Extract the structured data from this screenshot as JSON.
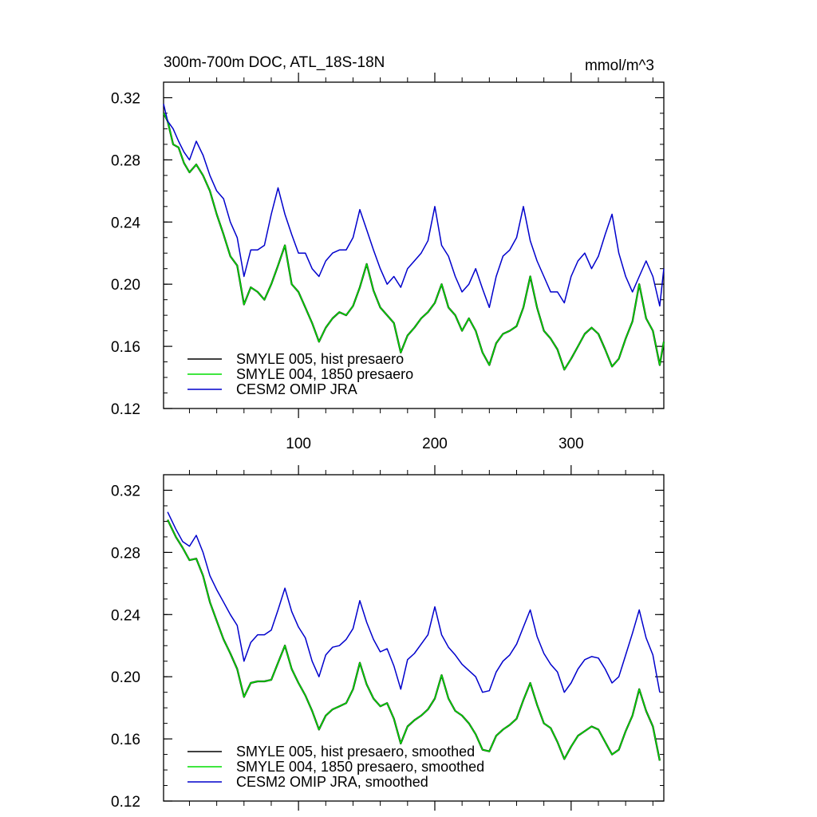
{
  "chart_data": [
    {
      "type": "line",
      "title": "300m-700m DOC, ATL_18S-18N",
      "units": "mmol/m^3",
      "xlabel": "",
      "ylabel": "",
      "xlim": [
        1,
        368
      ],
      "ylim": [
        0.12,
        0.33
      ],
      "xticks": [
        100,
        200,
        300
      ],
      "xtick_labels": [
        "100",
        "200",
        "300"
      ],
      "yticks": [
        0.12,
        0.16,
        0.2,
        0.24,
        0.28,
        0.32
      ],
      "ytick_labels": [
        "0.12",
        "0.16",
        "0.20",
        "0.24",
        "0.28",
        "0.32"
      ],
      "legend_position": "bottom-left",
      "series": [
        {
          "name": "SMYLE 005, hist presaero",
          "color": "#000000",
          "x": [
            1,
            4,
            8,
            12,
            16,
            20,
            25,
            30,
            35,
            40,
            45,
            50,
            55,
            60,
            65,
            70,
            75,
            80,
            85,
            90,
            95,
            100,
            105,
            110,
            115,
            120,
            125,
            130,
            135,
            140,
            145,
            150,
            155,
            160,
            165,
            170,
            175,
            180,
            185,
            190,
            195,
            200,
            205,
            210,
            215,
            220,
            225,
            230,
            235,
            240,
            245,
            250,
            255,
            260,
            265,
            270,
            275,
            280,
            285,
            290,
            295,
            300,
            305,
            310,
            315,
            320,
            325,
            330,
            335,
            340,
            345,
            350,
            355,
            360,
            365,
            368
          ],
          "values": [
            0.31,
            0.305,
            0.29,
            0.288,
            0.278,
            0.272,
            0.277,
            0.27,
            0.26,
            0.245,
            0.232,
            0.218,
            0.212,
            0.187,
            0.198,
            0.195,
            0.19,
            0.2,
            0.212,
            0.225,
            0.2,
            0.195,
            0.185,
            0.175,
            0.163,
            0.172,
            0.178,
            0.182,
            0.18,
            0.186,
            0.198,
            0.213,
            0.196,
            0.185,
            0.18,
            0.175,
            0.156,
            0.167,
            0.172,
            0.178,
            0.182,
            0.188,
            0.2,
            0.185,
            0.18,
            0.17,
            0.178,
            0.17,
            0.156,
            0.148,
            0.162,
            0.168,
            0.17,
            0.173,
            0.185,
            0.205,
            0.185,
            0.17,
            0.165,
            0.158,
            0.145,
            0.152,
            0.16,
            0.168,
            0.172,
            0.168,
            0.158,
            0.147,
            0.152,
            0.165,
            0.176,
            0.2,
            0.178,
            0.17,
            0.148,
            0.163
          ]
        },
        {
          "name": "SMYLE 004, 1850 presaero",
          "color": "#00dd00",
          "x": [
            1,
            4,
            8,
            12,
            16,
            20,
            25,
            30,
            35,
            40,
            45,
            50,
            55,
            60,
            65,
            70,
            75,
            80,
            85,
            90,
            95,
            100,
            105,
            110,
            115,
            120,
            125,
            130,
            135,
            140,
            145,
            150,
            155,
            160,
            165,
            170,
            175,
            180,
            185,
            190,
            195,
            200,
            205,
            210,
            215,
            220,
            225,
            230,
            235,
            240,
            245,
            250,
            255,
            260,
            265,
            270,
            275,
            280,
            285,
            290,
            295,
            300,
            305,
            310,
            315,
            320,
            325,
            330,
            335,
            340,
            345,
            350,
            355,
            360,
            365,
            368
          ],
          "values": [
            0.31,
            0.305,
            0.29,
            0.288,
            0.278,
            0.272,
            0.277,
            0.27,
            0.26,
            0.245,
            0.232,
            0.218,
            0.212,
            0.187,
            0.198,
            0.195,
            0.19,
            0.2,
            0.212,
            0.225,
            0.2,
            0.195,
            0.185,
            0.175,
            0.163,
            0.172,
            0.178,
            0.182,
            0.18,
            0.186,
            0.198,
            0.213,
            0.196,
            0.185,
            0.18,
            0.175,
            0.156,
            0.167,
            0.172,
            0.178,
            0.182,
            0.188,
            0.2,
            0.185,
            0.18,
            0.17,
            0.178,
            0.17,
            0.156,
            0.148,
            0.162,
            0.168,
            0.17,
            0.173,
            0.185,
            0.205,
            0.185,
            0.17,
            0.165,
            0.158,
            0.145,
            0.152,
            0.16,
            0.168,
            0.172,
            0.168,
            0.158,
            0.147,
            0.152,
            0.165,
            0.176,
            0.2,
            0.178,
            0.17,
            0.148,
            0.163
          ]
        },
        {
          "name": "CESM2 OMIP JRA",
          "color": "#0000cc",
          "x": [
            1,
            4,
            8,
            12,
            16,
            20,
            25,
            30,
            35,
            40,
            45,
            50,
            55,
            60,
            65,
            70,
            75,
            80,
            85,
            90,
            95,
            100,
            105,
            110,
            115,
            120,
            125,
            130,
            135,
            140,
            145,
            150,
            155,
            160,
            165,
            170,
            175,
            180,
            185,
            190,
            195,
            200,
            205,
            210,
            215,
            220,
            225,
            230,
            235,
            240,
            245,
            250,
            255,
            260,
            265,
            270,
            275,
            280,
            285,
            290,
            295,
            300,
            305,
            310,
            315,
            320,
            325,
            330,
            335,
            340,
            345,
            350,
            355,
            360,
            365,
            368
          ],
          "values": [
            0.316,
            0.305,
            0.3,
            0.292,
            0.285,
            0.28,
            0.292,
            0.283,
            0.27,
            0.26,
            0.255,
            0.24,
            0.23,
            0.205,
            0.222,
            0.222,
            0.225,
            0.245,
            0.262,
            0.245,
            0.232,
            0.22,
            0.22,
            0.21,
            0.205,
            0.215,
            0.22,
            0.222,
            0.222,
            0.23,
            0.248,
            0.235,
            0.222,
            0.21,
            0.2,
            0.205,
            0.198,
            0.21,
            0.215,
            0.22,
            0.228,
            0.25,
            0.225,
            0.218,
            0.205,
            0.195,
            0.2,
            0.21,
            0.197,
            0.185,
            0.205,
            0.218,
            0.222,
            0.23,
            0.25,
            0.228,
            0.215,
            0.205,
            0.195,
            0.195,
            0.188,
            0.205,
            0.215,
            0.22,
            0.21,
            0.218,
            0.232,
            0.245,
            0.22,
            0.205,
            0.195,
            0.205,
            0.215,
            0.205,
            0.186,
            0.21
          ]
        }
      ]
    },
    {
      "type": "line",
      "title": "",
      "xlabel": "",
      "ylabel": "",
      "xlim": [
        1,
        368
      ],
      "ylim": [
        0.12,
        0.33
      ],
      "xticks": [
        100,
        200,
        300
      ],
      "yticks": [
        0.12,
        0.16,
        0.2,
        0.24,
        0.28,
        0.32
      ],
      "ytick_labels": [
        "0.12",
        "0.16",
        "0.20",
        "0.24",
        "0.28",
        "0.32"
      ],
      "legend_position": "bottom-left",
      "series": [
        {
          "name": "SMYLE 005, hist presaero, smoothed",
          "color": "#000000",
          "x": [
            4,
            10,
            15,
            20,
            25,
            30,
            35,
            40,
            45,
            50,
            55,
            60,
            65,
            70,
            75,
            80,
            85,
            90,
            95,
            100,
            105,
            110,
            115,
            120,
            125,
            130,
            135,
            140,
            145,
            150,
            155,
            160,
            165,
            170,
            175,
            180,
            185,
            190,
            195,
            200,
            205,
            210,
            215,
            220,
            225,
            230,
            235,
            240,
            245,
            250,
            255,
            260,
            265,
            270,
            275,
            280,
            285,
            290,
            295,
            300,
            305,
            310,
            315,
            320,
            325,
            330,
            335,
            340,
            345,
            350,
            355,
            360,
            365
          ],
          "values": [
            0.301,
            0.29,
            0.283,
            0.275,
            0.276,
            0.265,
            0.248,
            0.236,
            0.224,
            0.215,
            0.205,
            0.187,
            0.196,
            0.197,
            0.197,
            0.198,
            0.209,
            0.22,
            0.205,
            0.196,
            0.188,
            0.178,
            0.166,
            0.175,
            0.179,
            0.181,
            0.183,
            0.192,
            0.209,
            0.195,
            0.186,
            0.181,
            0.183,
            0.173,
            0.157,
            0.168,
            0.172,
            0.175,
            0.179,
            0.186,
            0.201,
            0.186,
            0.178,
            0.175,
            0.17,
            0.163,
            0.153,
            0.152,
            0.162,
            0.166,
            0.169,
            0.173,
            0.185,
            0.196,
            0.182,
            0.17,
            0.167,
            0.158,
            0.147,
            0.155,
            0.162,
            0.165,
            0.168,
            0.166,
            0.158,
            0.15,
            0.153,
            0.165,
            0.175,
            0.192,
            0.178,
            0.168,
            0.146
          ]
        },
        {
          "name": "SMYLE 004, 1850 presaero, smoothed",
          "color": "#00dd00",
          "x": [
            4,
            10,
            15,
            20,
            25,
            30,
            35,
            40,
            45,
            50,
            55,
            60,
            65,
            70,
            75,
            80,
            85,
            90,
            95,
            100,
            105,
            110,
            115,
            120,
            125,
            130,
            135,
            140,
            145,
            150,
            155,
            160,
            165,
            170,
            175,
            180,
            185,
            190,
            195,
            200,
            205,
            210,
            215,
            220,
            225,
            230,
            235,
            240,
            245,
            250,
            255,
            260,
            265,
            270,
            275,
            280,
            285,
            290,
            295,
            300,
            305,
            310,
            315,
            320,
            325,
            330,
            335,
            340,
            345,
            350,
            355,
            360,
            365
          ],
          "values": [
            0.301,
            0.29,
            0.283,
            0.275,
            0.276,
            0.265,
            0.248,
            0.236,
            0.224,
            0.215,
            0.205,
            0.187,
            0.196,
            0.197,
            0.197,
            0.198,
            0.209,
            0.22,
            0.205,
            0.196,
            0.188,
            0.178,
            0.166,
            0.175,
            0.179,
            0.181,
            0.183,
            0.192,
            0.209,
            0.195,
            0.186,
            0.181,
            0.183,
            0.173,
            0.157,
            0.168,
            0.172,
            0.175,
            0.179,
            0.186,
            0.201,
            0.186,
            0.178,
            0.175,
            0.17,
            0.163,
            0.153,
            0.152,
            0.162,
            0.166,
            0.169,
            0.173,
            0.185,
            0.196,
            0.182,
            0.17,
            0.167,
            0.158,
            0.147,
            0.155,
            0.162,
            0.165,
            0.168,
            0.166,
            0.158,
            0.15,
            0.153,
            0.165,
            0.175,
            0.192,
            0.178,
            0.168,
            0.146
          ]
        },
        {
          "name": "CESM2 OMIP JRA, smoothed",
          "color": "#0000cc",
          "x": [
            4,
            10,
            15,
            20,
            25,
            30,
            35,
            40,
            45,
            50,
            55,
            60,
            65,
            70,
            75,
            80,
            85,
            90,
            95,
            100,
            105,
            110,
            115,
            120,
            125,
            130,
            135,
            140,
            145,
            150,
            155,
            160,
            165,
            170,
            175,
            180,
            185,
            190,
            195,
            200,
            205,
            210,
            215,
            220,
            225,
            230,
            235,
            240,
            245,
            250,
            255,
            260,
            265,
            270,
            275,
            280,
            285,
            290,
            295,
            300,
            305,
            310,
            315,
            320,
            325,
            330,
            335,
            340,
            345,
            350,
            355,
            360,
            365
          ],
          "values": [
            0.306,
            0.295,
            0.287,
            0.284,
            0.291,
            0.28,
            0.265,
            0.256,
            0.248,
            0.24,
            0.233,
            0.21,
            0.222,
            0.227,
            0.227,
            0.23,
            0.243,
            0.257,
            0.242,
            0.232,
            0.225,
            0.21,
            0.2,
            0.214,
            0.219,
            0.22,
            0.224,
            0.231,
            0.249,
            0.235,
            0.224,
            0.216,
            0.218,
            0.207,
            0.192,
            0.211,
            0.215,
            0.221,
            0.227,
            0.245,
            0.227,
            0.219,
            0.214,
            0.208,
            0.204,
            0.2,
            0.19,
            0.191,
            0.203,
            0.21,
            0.214,
            0.221,
            0.232,
            0.243,
            0.226,
            0.215,
            0.208,
            0.203,
            0.19,
            0.196,
            0.205,
            0.211,
            0.213,
            0.212,
            0.205,
            0.196,
            0.2,
            0.214,
            0.228,
            0.243,
            0.225,
            0.214,
            0.19
          ]
        }
      ]
    }
  ]
}
